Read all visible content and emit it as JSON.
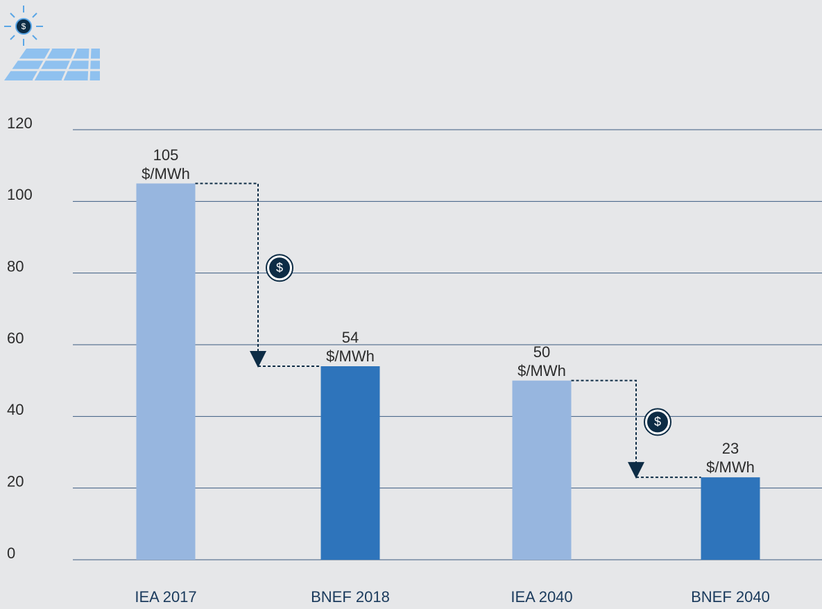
{
  "chart_data": {
    "type": "bar",
    "categories": [
      "IEA 2017",
      "BNEF 2018",
      "IEA 2040",
      "BNEF 2040"
    ],
    "values": [
      105,
      54,
      50,
      23
    ],
    "value_labels": [
      "105 $/MWh",
      "54 $/MWh",
      "50 $/MWh",
      "23 $/MWh"
    ],
    "colors": [
      "#97b6df",
      "#2e74bb",
      "#97b6df",
      "#2e74bb"
    ],
    "ylim": [
      0,
      120
    ],
    "yticks": [
      0,
      20,
      40,
      60,
      80,
      100,
      120
    ],
    "grid": true
  }
}
